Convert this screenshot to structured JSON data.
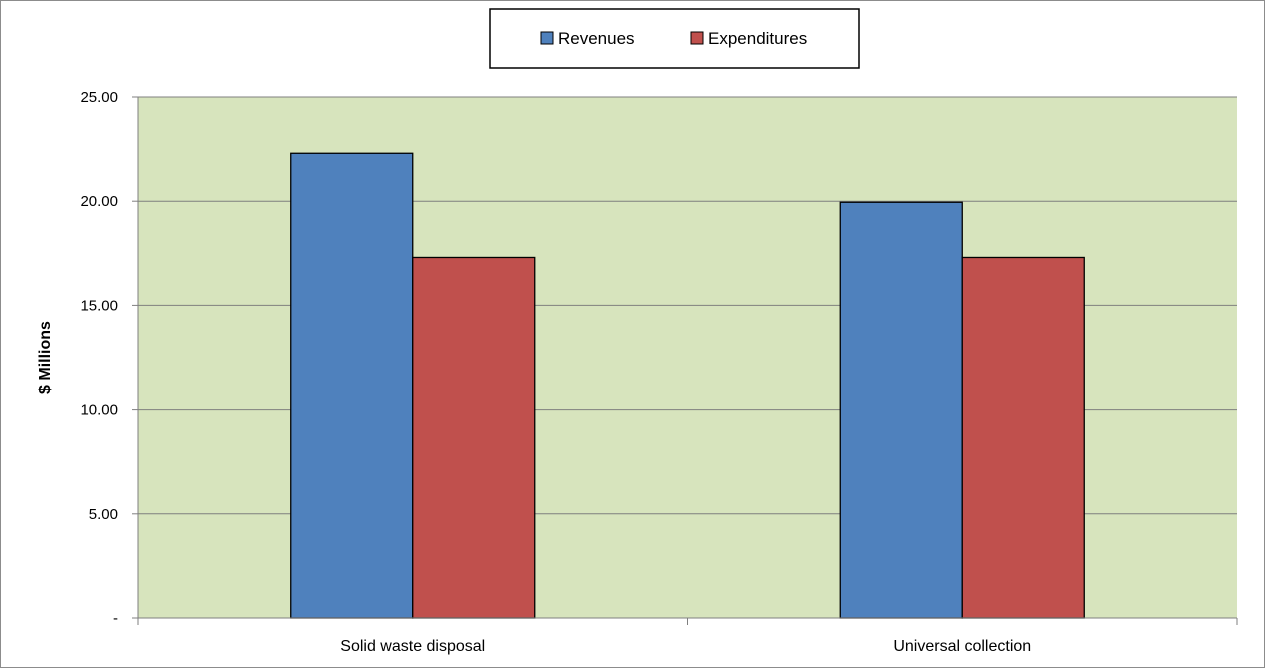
{
  "colors": {
    "plot_background": "#d7e4bd",
    "gridline": "#7f7f7f",
    "axis": "#7f7f7f",
    "bar_outline": "#000000"
  },
  "chart_data": {
    "type": "bar",
    "categories": [
      "Solid waste disposal",
      "Universal collection"
    ],
    "series": [
      {
        "name": "Revenues",
        "color": "#4f81bd",
        "values": [
          22.3,
          19.95
        ]
      },
      {
        "name": "Expenditures",
        "color": "#c0504d",
        "values": [
          17.3,
          17.3
        ]
      }
    ],
    "ylabel": "$ Millions",
    "xlabel": "",
    "ylim": [
      0,
      25
    ],
    "yticks": [
      {
        "value": 0,
        "label": "-"
      },
      {
        "value": 5,
        "label": "5.00"
      },
      {
        "value": 10,
        "label": "10.00"
      },
      {
        "value": 15,
        "label": "15.00"
      },
      {
        "value": 20,
        "label": "20.00"
      },
      {
        "value": 25,
        "label": "25.00"
      }
    ],
    "grid": true,
    "legend": "top-center"
  }
}
